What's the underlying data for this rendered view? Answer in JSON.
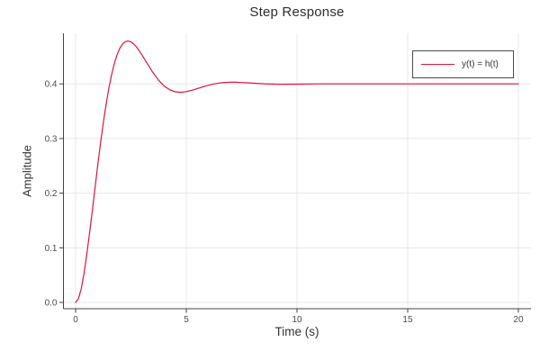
{
  "chart_data": {
    "type": "line",
    "title": "Step Response",
    "xlabel": "Time (s)",
    "ylabel": "Amplitude",
    "xlim": [
      -0.55,
      20.57
    ],
    "ylim": [
      -0.0115,
      0.4926
    ],
    "grid": true,
    "xticks": {
      "values": [
        0,
        5,
        10,
        15,
        20
      ],
      "labels": [
        "0",
        "5",
        "10",
        "15",
        "20"
      ]
    },
    "yticks": {
      "values": [
        0,
        0.1,
        0.2,
        0.3,
        0.4
      ],
      "labels": [
        "0.0",
        "0.1",
        "0.2",
        "0.3",
        "0.4"
      ]
    },
    "legend": {
      "position": "top-right",
      "bordered": true
    },
    "series": [
      {
        "name": "y(t) = h(t)",
        "color": "#DC143C",
        "x": [
          0,
          0.125,
          0.25,
          0.375,
          0.5,
          0.625,
          0.75,
          0.875,
          1,
          1.125,
          1.25,
          1.375,
          1.5,
          1.625,
          1.75,
          1.875,
          2,
          2.125,
          2.25,
          2.375,
          2.5,
          2.625,
          2.75,
          2.875,
          3,
          3.25,
          3.5,
          3.75,
          4,
          4.25,
          4.5,
          4.75,
          5,
          5.25,
          5.5,
          5.75,
          6,
          6.25,
          6.5,
          6.75,
          7,
          7.25,
          7.5,
          7.75,
          8,
          8.5,
          9,
          9.5,
          10,
          11,
          12,
          13,
          14,
          15,
          16,
          17,
          18,
          19,
          20
        ],
        "y": [
          0,
          0.0067,
          0.0248,
          0.0523,
          0.0866,
          0.1254,
          0.1671,
          0.2096,
          0.2514,
          0.2916,
          0.3288,
          0.3624,
          0.3918,
          0.4169,
          0.4375,
          0.4536,
          0.4654,
          0.4732,
          0.4774,
          0.4785,
          0.4769,
          0.473,
          0.4675,
          0.4606,
          0.4529,
          0.4363,
          0.4203,
          0.4066,
          0.3961,
          0.3891,
          0.3855,
          0.3846,
          0.3858,
          0.3883,
          0.3914,
          0.3947,
          0.3976,
          0.3999,
          0.4016,
          0.4026,
          0.403,
          0.4029,
          0.4025,
          0.402,
          0.4013,
          0.4002,
          0.3996,
          0.3994,
          0.3996,
          0.4,
          0.4,
          0.4,
          0.4,
          0.4,
          0.4,
          0.4,
          0.4,
          0.4,
          0.4
        ]
      }
    ],
    "colors": {
      "line": "#DC143C",
      "grid": "#e8e8e8",
      "spine": "#424242",
      "tick_label": "#4b4b4b",
      "title": "#2d2d2d"
    }
  }
}
